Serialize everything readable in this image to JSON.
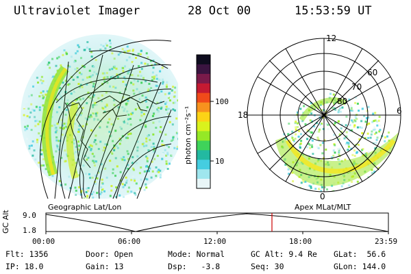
{
  "header": {
    "instrument": "Ultraviolet Imager",
    "date": "28 Oct 00",
    "time": "15:53:59 UT"
  },
  "left_panel": {
    "caption": "Geographic Lat/Lon"
  },
  "right_panel": {
    "caption": "Apex MLat/MLT",
    "mlt_labels": [
      "12",
      "18",
      "6",
      "0"
    ],
    "mlat_labels": [
      "60",
      "70",
      "80"
    ]
  },
  "colorbar": {
    "label": "photon cm⁻²s⁻¹",
    "ticks": [
      "100",
      "10"
    ],
    "colors": [
      "#0e0c1e",
      "#3a1440",
      "#7a1a4a",
      "#c41a32",
      "#f04a1a",
      "#f7921e",
      "#fcd316",
      "#d9f21d",
      "#95e826",
      "#3fd35a",
      "#23b9a1",
      "#45cde0",
      "#9fe6ee",
      "#e9f6f8"
    ]
  },
  "altitude_plot": {
    "ylabel": "GC Alt",
    "yticks": [
      "9.0",
      "1.8"
    ],
    "xticks": [
      "00:00",
      "06:00",
      "12:00",
      "18:00",
      "23:59"
    ],
    "current_time_marker": "15:53:59",
    "marker_color": "#cc0000"
  },
  "info": {
    "flt_label": "Flt:",
    "flt_value": "1356",
    "ip_label": "IP:",
    "ip_value": "18.0",
    "door_label": "Door:",
    "door_value": "Open",
    "gain_label": "Gain:",
    "gain_value": "13",
    "mode_label": "Mode:",
    "mode_value": "Normal",
    "dsp_label": "Dsp:",
    "dsp_value": "-3.8",
    "gcalt_label": "GC Alt:",
    "gcalt_value": "9.4 Re",
    "seq_label": "Seq:",
    "seq_value": "30",
    "glat_label": "GLat:",
    "glat_value": "56.6",
    "glon_label": "GLon:",
    "glon_value": "144.0"
  }
}
